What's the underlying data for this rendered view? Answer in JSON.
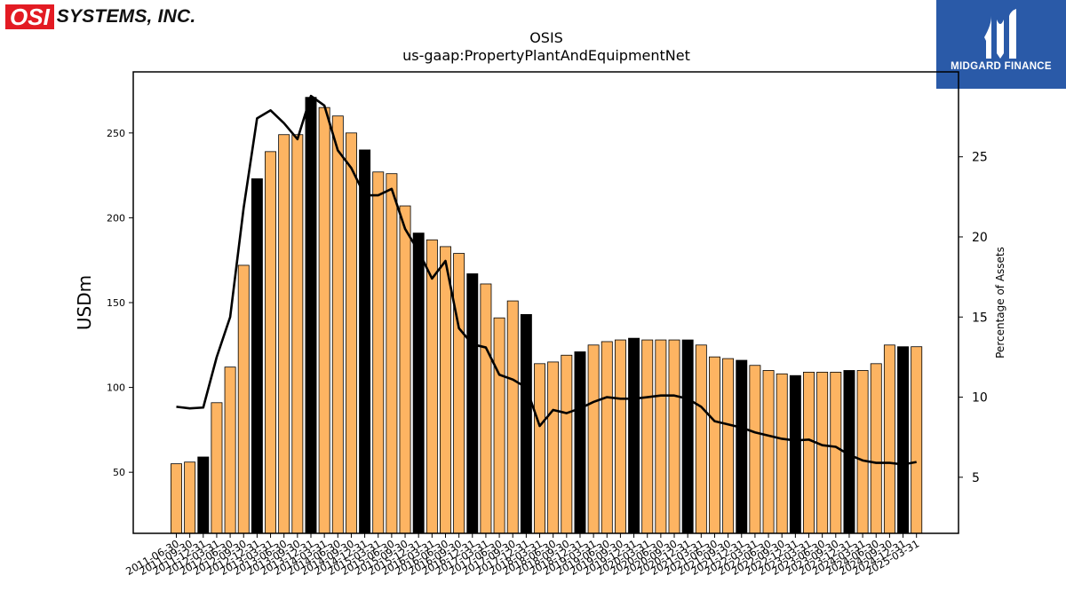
{
  "logos": {
    "company_box": "OSI",
    "company_rest": "SYSTEMS, INC.",
    "partner": "MIDGARD FINANCE"
  },
  "chart_data": {
    "type": "bar",
    "title": "OSIS",
    "subtitle": "us-gaap:PropertyPlantAndEquipmentNet",
    "ylabel": "USDm",
    "y2label": "Percentage of Assets",
    "ylim": [
      14,
      286
    ],
    "y2lim": [
      1.5,
      30.3
    ],
    "yticks": [
      50,
      100,
      150,
      200,
      250
    ],
    "y2ticks": [
      5,
      10,
      15,
      20,
      25
    ],
    "colors": {
      "bar": "#fdb462",
      "bar_fy": "#000000",
      "line": "#000000"
    },
    "categories": [
      "2011-06-30",
      "2011-09-30",
      "2011-12-31",
      "2012-03-31",
      "2012-06-30",
      "2012-09-30",
      "2012-12-31",
      "2013-03-31",
      "2013-06-30",
      "2013-09-30",
      "2013-12-31",
      "2014-03-31",
      "2014-06-30",
      "2014-09-30",
      "2014-12-31",
      "2015-03-31",
      "2015-06-30",
      "2015-09-30",
      "2015-12-31",
      "2016-03-31",
      "2016-06-30",
      "2016-09-30",
      "2016-12-31",
      "2017-03-31",
      "2017-06-30",
      "2017-09-30",
      "2017-12-31",
      "2018-03-31",
      "2018-06-30",
      "2018-09-30",
      "2018-12-31",
      "2019-03-31",
      "2019-06-30",
      "2019-09-30",
      "2019-12-31",
      "2020-03-31",
      "2020-06-30",
      "2020-09-30",
      "2020-12-31",
      "2021-03-31",
      "2021-06-30",
      "2021-09-30",
      "2021-12-31",
      "2022-03-31",
      "2022-06-30",
      "2022-09-30",
      "2022-12-31",
      "2023-03-31",
      "2023-06-30",
      "2023-09-30",
      "2023-12-31",
      "2024-03-31",
      "2024-06-30",
      "2024-09-30",
      "2024-12-31",
      "2025-03-31"
    ],
    "series": [
      {
        "type": "bar",
        "values": [
          55,
          56,
          59,
          91,
          112,
          172,
          223,
          239,
          249,
          249,
          271,
          265,
          260,
          250,
          240,
          227,
          226,
          207,
          191,
          187,
          183,
          179,
          167,
          161,
          141,
          151,
          143,
          114,
          115,
          119,
          121,
          125,
          127,
          128,
          129,
          128,
          128,
          128,
          128,
          125,
          118,
          117,
          116,
          113,
          110,
          108,
          107,
          109,
          109,
          109,
          110,
          110,
          114,
          125,
          124,
          124
        ],
        "highlight_index_mod": 4,
        "highlight_offset": 2
      },
      {
        "type": "line",
        "axis": "right",
        "values": [
          9.4,
          9.3,
          9.35,
          12.5,
          15,
          21.8,
          27.4,
          27.9,
          27.1,
          26.1,
          28.8,
          28.2,
          25.4,
          24.3,
          22.6,
          22.6,
          23,
          20.5,
          19.1,
          17.4,
          18.5,
          14.3,
          13.3,
          13.1,
          11.4,
          11.1,
          10.6,
          8.2,
          9.2,
          9,
          9.3,
          9.7,
          10,
          9.9,
          9.9,
          10,
          10.1,
          10.1,
          9.9,
          9.4,
          8.5,
          8.3,
          8.1,
          7.8,
          7.6,
          7.4,
          7.3,
          7.35,
          7,
          6.9,
          6.4,
          6.05,
          5.9,
          5.9,
          5.8,
          5.95
        ]
      }
    ]
  }
}
